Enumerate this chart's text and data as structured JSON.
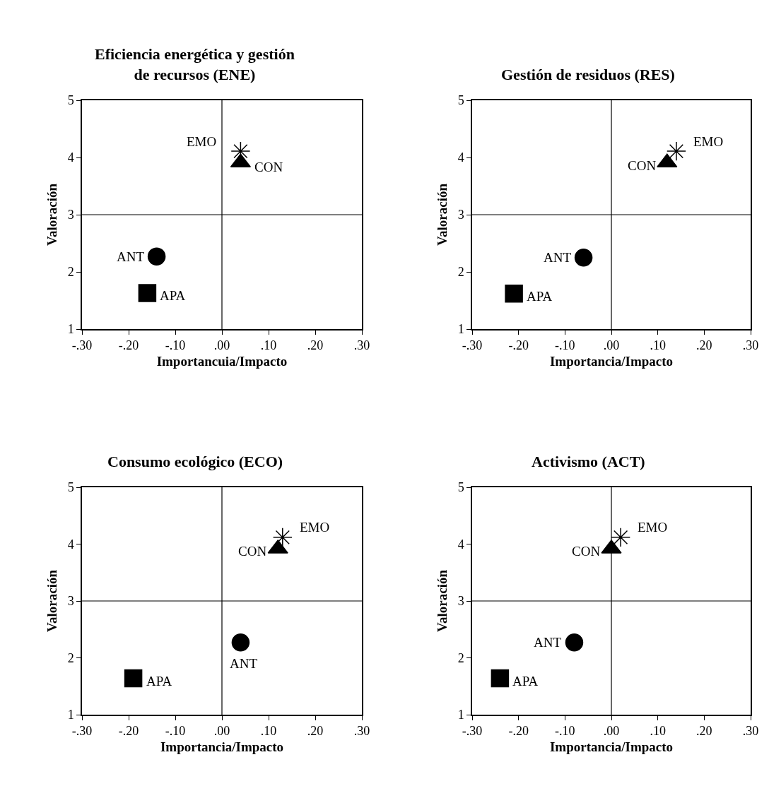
{
  "chart_data": [
    {
      "type": "scatter",
      "title": "Eficiencia energética y gestión\nde recursos (ENE)",
      "xlabel": "Importancuia/Impacto",
      "ylabel": "Valoración",
      "xlim": [
        -0.3,
        0.3
      ],
      "xticks": [
        {
          "value": -0.3,
          "label": "-.30"
        },
        {
          "value": -0.2,
          "label": "-.20"
        },
        {
          "value": -0.1,
          "label": "-.10"
        },
        {
          "value": 0,
          "label": ".00"
        },
        {
          "value": 0.1,
          "label": ".10"
        },
        {
          "value": 0.2,
          "label": ".20"
        },
        {
          "value": 0.3,
          "label": ".30"
        }
      ],
      "ylim": [
        1,
        5
      ],
      "yticks": [
        1,
        2,
        3,
        4,
        5
      ],
      "grid": false,
      "ref_lines": [
        {
          "axis": "x",
          "value": 0,
          "color": "#000000"
        },
        {
          "axis": "y",
          "value": 3,
          "color": "#000000"
        }
      ],
      "series": [
        {
          "name": "ANT",
          "color": "#000000",
          "marker": "circle",
          "x": [
            -0.14
          ],
          "values": [
            2.27
          ]
        },
        {
          "name": "APA",
          "color": "#000000",
          "marker": "square",
          "x": [
            -0.16
          ],
          "values": [
            1.63
          ]
        },
        {
          "name": "CON",
          "color": "#000000",
          "marker": "triangle",
          "x": [
            0.04
          ],
          "values": [
            3.91
          ]
        },
        {
          "name": "EMO",
          "color": "#000000",
          "marker": "cross",
          "x": [
            0.04
          ],
          "values": [
            4.11
          ]
        }
      ]
    },
    {
      "type": "scatter",
      "title": "Gestión de residuos (RES)",
      "xlabel": "Importancia/Impacto",
      "ylabel": "Valoración",
      "xlim": [
        -0.3,
        0.3
      ],
      "xticks": [
        {
          "value": -0.3,
          "label": "-.30"
        },
        {
          "value": -0.2,
          "label": "-.20"
        },
        {
          "value": -0.1,
          "label": "-.10"
        },
        {
          "value": 0,
          "label": ".00"
        },
        {
          "value": 0.1,
          "label": ".10"
        },
        {
          "value": 0.2,
          "label": ".20"
        },
        {
          "value": 0.3,
          "label": ".30"
        }
      ],
      "ylim": [
        1,
        5
      ],
      "yticks": [
        1,
        2,
        3,
        4,
        5
      ],
      "grid": false,
      "ref_lines": [
        {
          "axis": "x",
          "value": 0,
          "color": "#000000"
        },
        {
          "axis": "y",
          "value": 3,
          "color": "#000000"
        }
      ],
      "series": [
        {
          "name": "ANT",
          "color": "#000000",
          "marker": "circle",
          "x": [
            -0.06
          ],
          "values": [
            2.25
          ]
        },
        {
          "name": "APA",
          "color": "#000000",
          "marker": "square",
          "x": [
            -0.21
          ],
          "values": [
            1.62
          ]
        },
        {
          "name": "CON",
          "color": "#000000",
          "marker": "triangle",
          "x": [
            0.12
          ],
          "values": [
            3.91
          ]
        },
        {
          "name": "EMO",
          "color": "#000000",
          "marker": "cross",
          "x": [
            0.14
          ],
          "values": [
            4.11
          ]
        }
      ]
    },
    {
      "type": "scatter",
      "title": "Consumo ecológico (ECO)",
      "xlabel": "Importancia/Impacto",
      "ylabel": "Valoración",
      "xlim": [
        -0.3,
        0.3
      ],
      "xticks": [
        {
          "value": -0.3,
          "label": "-.30"
        },
        {
          "value": -0.2,
          "label": "-.20"
        },
        {
          "value": -0.1,
          "label": "-.10"
        },
        {
          "value": 0,
          "label": ".00"
        },
        {
          "value": 0.1,
          "label": ".10"
        },
        {
          "value": 0.2,
          "label": ".20"
        },
        {
          "value": 0.3,
          "label": ".30"
        }
      ],
      "ylim": [
        1,
        5
      ],
      "yticks": [
        1,
        2,
        3,
        4,
        5
      ],
      "grid": false,
      "ref_lines": [
        {
          "axis": "x",
          "value": 0,
          "color": "#000000"
        },
        {
          "axis": "y",
          "value": 3,
          "color": "#000000"
        }
      ],
      "series": [
        {
          "name": "ANT",
          "color": "#000000",
          "marker": "circle",
          "x": [
            0.04
          ],
          "values": [
            2.27
          ]
        },
        {
          "name": "APA",
          "color": "#000000",
          "marker": "square",
          "x": [
            -0.19
          ],
          "values": [
            1.64
          ]
        },
        {
          "name": "CON",
          "color": "#000000",
          "marker": "triangle",
          "x": [
            0.12
          ],
          "values": [
            3.92
          ]
        },
        {
          "name": "EMO",
          "color": "#000000",
          "marker": "cross",
          "x": [
            0.13
          ],
          "values": [
            4.12
          ]
        }
      ]
    },
    {
      "type": "scatter",
      "title": "Activismo (ACT)",
      "xlabel": "Importancia/Impacto",
      "ylabel": "Valoración",
      "xlim": [
        -0.3,
        0.3
      ],
      "xticks": [
        {
          "value": -0.3,
          "label": "-.30"
        },
        {
          "value": -0.2,
          "label": "-.20"
        },
        {
          "value": -0.1,
          "label": "-.10"
        },
        {
          "value": 0,
          "label": ".00"
        },
        {
          "value": 0.1,
          "label": ".10"
        },
        {
          "value": 0.2,
          "label": ".20"
        },
        {
          "value": 0.3,
          "label": ".30"
        }
      ],
      "ylim": [
        1,
        5
      ],
      "yticks": [
        1,
        2,
        3,
        4,
        5
      ],
      "grid": false,
      "ref_lines": [
        {
          "axis": "x",
          "value": 0,
          "color": "#000000"
        },
        {
          "axis": "y",
          "value": 3,
          "color": "#000000"
        }
      ],
      "series": [
        {
          "name": "ANT",
          "color": "#000000",
          "marker": "circle",
          "x": [
            -0.08
          ],
          "values": [
            2.27
          ]
        },
        {
          "name": "APA",
          "color": "#000000",
          "marker": "square",
          "x": [
            -0.24
          ],
          "values": [
            1.64
          ]
        },
        {
          "name": "CON",
          "color": "#000000",
          "marker": "triangle",
          "x": [
            0.0
          ],
          "values": [
            3.92
          ]
        },
        {
          "name": "EMO",
          "color": "#000000",
          "marker": "cross",
          "x": [
            0.02
          ],
          "values": [
            4.12
          ]
        }
      ]
    }
  ]
}
